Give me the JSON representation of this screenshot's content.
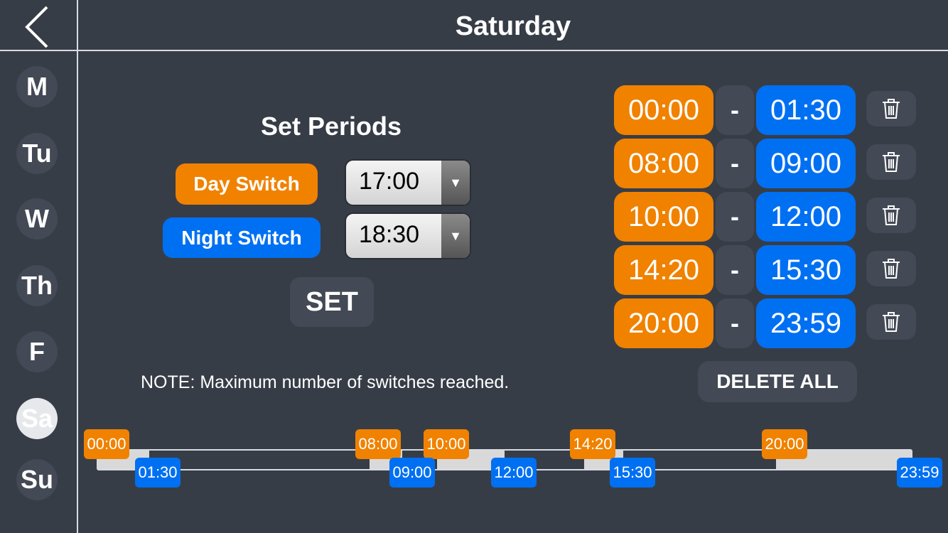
{
  "header": {
    "title": "Saturday",
    "back_icon": "chevron-left-icon"
  },
  "days": [
    {
      "label": "M",
      "active": false
    },
    {
      "label": "Tu",
      "active": false
    },
    {
      "label": "W",
      "active": false
    },
    {
      "label": "Th",
      "active": false
    },
    {
      "label": "F",
      "active": false
    },
    {
      "label": "Sa",
      "active": true
    },
    {
      "label": "Su",
      "active": false
    }
  ],
  "set_periods": {
    "heading": "Set Periods",
    "day_switch_label": "Day Switch",
    "day_switch_value": "17:00",
    "night_switch_label": "Night Switch",
    "night_switch_value": "18:30",
    "set_label": "SET",
    "note": "NOTE: Maximum number of switches reached."
  },
  "periods": [
    {
      "start": "00:00",
      "sep": "-",
      "end": "01:30"
    },
    {
      "start": "08:00",
      "sep": "-",
      "end": "09:00"
    },
    {
      "start": "10:00",
      "sep": "-",
      "end": "12:00"
    },
    {
      "start": "14:20",
      "sep": "-",
      "end": "15:30"
    },
    {
      "start": "20:00",
      "sep": "-",
      "end": "23:59"
    }
  ],
  "delete_all_label": "DELETE ALL",
  "timeline": {
    "start_tags": [
      "00:00",
      "08:00",
      "10:00",
      "14:20",
      "20:00"
    ],
    "end_tags": [
      "01:30",
      "09:00",
      "12:00",
      "15:30",
      "23:59"
    ]
  },
  "colors": {
    "day": "#f08200",
    "night": "#0070f2",
    "background": "#373d47",
    "button": "#434955"
  }
}
